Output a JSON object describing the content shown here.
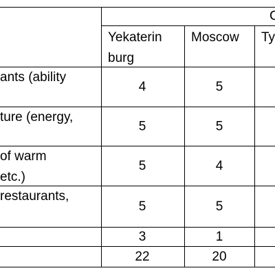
{
  "table": {
    "group_header": "C",
    "columns": [
      "Yekaterin\nburg",
      "Moscow",
      "Ty"
    ],
    "rows": [
      {
        "label": [
          "ants (ability"
        ],
        "values": [
          "4",
          "5"
        ]
      },
      {
        "label": [
          "ture (energy,"
        ],
        "values": [
          "5",
          "5"
        ]
      },
      {
        "label": [
          " of warm",
          "etc.)"
        ],
        "values": [
          "5",
          "4"
        ]
      },
      {
        "label": [
          "restaurants,"
        ],
        "values": [
          "5",
          "5"
        ]
      },
      {
        "values": [
          "3",
          "1"
        ]
      },
      {
        "values": [
          "22",
          "20"
        ]
      }
    ]
  }
}
